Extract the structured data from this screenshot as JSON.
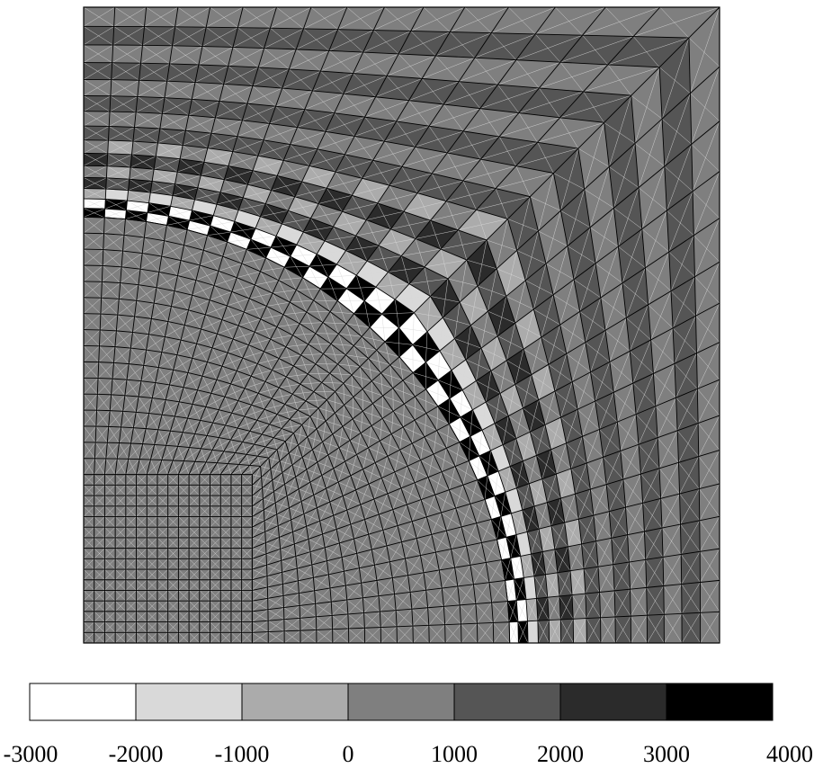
{
  "legend": {
    "colors": [
      "#ffffff",
      "#d9d9d9",
      "#ababab",
      "#7f7f7f",
      "#555555",
      "#2b2b2b",
      "#000000"
    ],
    "ticks": [
      "-3000",
      "-2000",
      "-1000",
      "0",
      "1000",
      "2000",
      "3000",
      "4000"
    ]
  }
}
